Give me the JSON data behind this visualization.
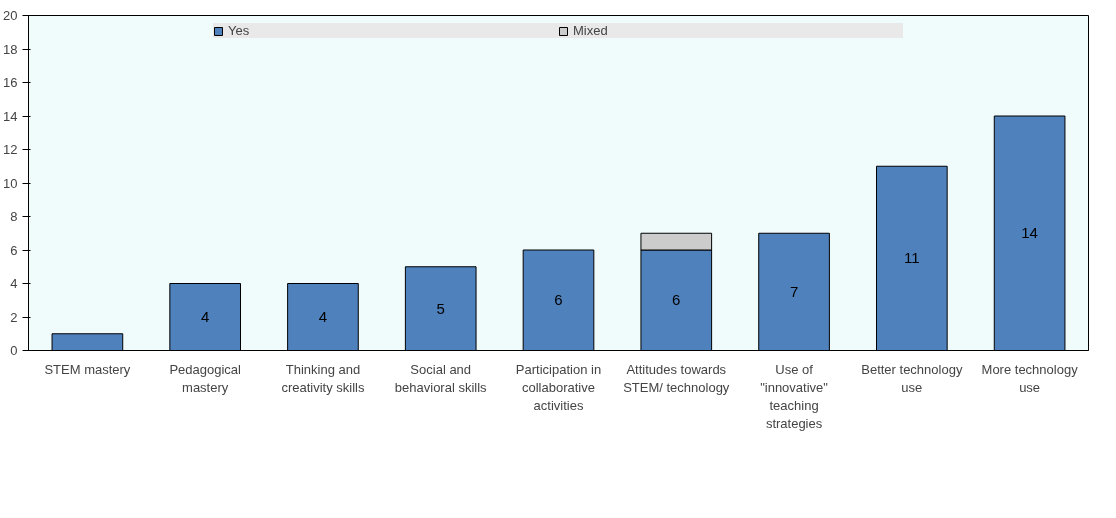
{
  "chart_data": {
    "type": "bar",
    "stacked": true,
    "categories": [
      "STEM mastery",
      "Pedagogical mastery",
      "Thinking and creativity skills",
      "Social and behavioral skills",
      "Participation in collaborative activities",
      "Attitudes towards STEM/ technology",
      "Use of \"innovative\" teaching strategies",
      "Better technology use",
      "More technology use"
    ],
    "series": [
      {
        "name": "Yes",
        "color": "#4f81bd",
        "values": [
          1,
          4,
          4,
          5,
          6,
          6,
          7,
          11,
          14
        ],
        "value_labels": [
          null,
          "4",
          "4",
          "5",
          "6",
          "6",
          "7",
          "11",
          "14"
        ]
      },
      {
        "name": "Mixed",
        "color": "#cccccc",
        "values": [
          0,
          0,
          0,
          0,
          0,
          1,
          0,
          0,
          0
        ]
      }
    ],
    "ylim": [
      0,
      20
    ],
    "yticks": [
      0,
      2,
      4,
      6,
      8,
      10,
      12,
      14,
      16,
      18,
      20
    ],
    "grid": false,
    "legend": "top"
  }
}
